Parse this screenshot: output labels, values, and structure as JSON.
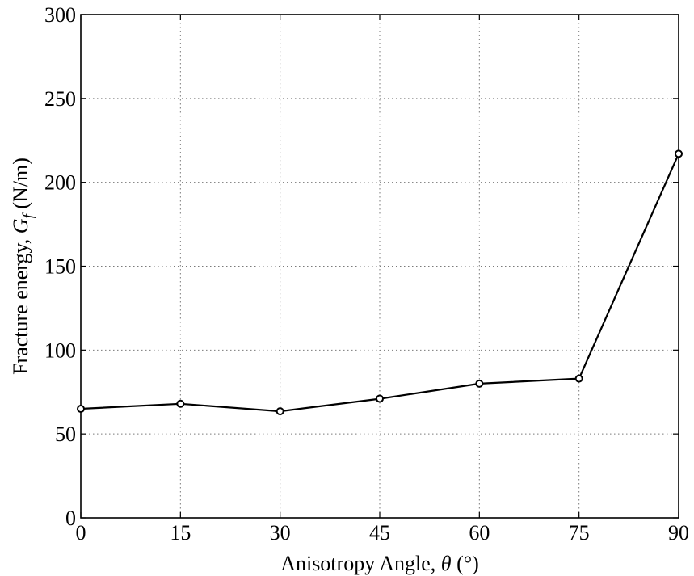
{
  "chart_data": {
    "type": "line",
    "xlabel": "Anisotropy Angle, θ (°)",
    "ylabel": "Fracture energy, G_f (N/m)",
    "ylabel_parts": {
      "pre": "Fracture energy, ",
      "var": "G",
      "sub": "f",
      "post": " (N/m)"
    },
    "xlabel_parts": {
      "pre": "Anisotropy Angle, ",
      "var": "θ",
      "post": " (°)"
    },
    "xlim": [
      0,
      90
    ],
    "ylim": [
      0,
      300
    ],
    "xticks": [
      0,
      15,
      30,
      45,
      60,
      75,
      90
    ],
    "yticks": [
      0,
      50,
      100,
      150,
      200,
      250,
      300
    ],
    "grid": true,
    "series": [
      {
        "x": [
          0,
          15,
          30,
          45,
          60,
          75,
          90
        ],
        "y": [
          65,
          68,
          63.5,
          71,
          80,
          83,
          217
        ],
        "color": "#000000",
        "marker": "circle-open"
      }
    ]
  }
}
